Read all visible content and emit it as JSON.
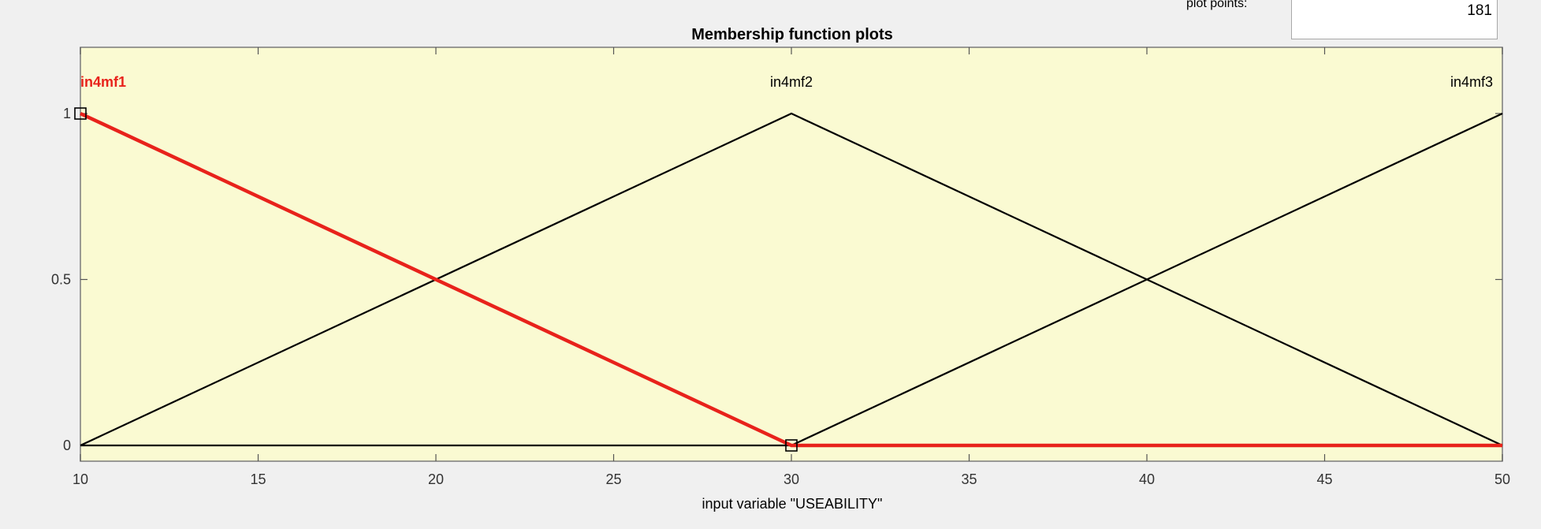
{
  "plot_points": {
    "label": "plot points:",
    "value": "181"
  },
  "chart_data": {
    "type": "line",
    "title": "Membership function plots",
    "xlabel": "input variable \"USEABILITY\"",
    "ylabel": "",
    "xlim": [
      10,
      50
    ],
    "ylim": [
      0,
      1
    ],
    "xticks": [
      10,
      15,
      20,
      25,
      30,
      35,
      40,
      45,
      50
    ],
    "yticks": [
      0,
      0.5,
      1
    ],
    "grid": false,
    "series": [
      {
        "name": "in4mf1",
        "selected": true,
        "color": "#e8221b",
        "x": [
          10,
          30,
          50
        ],
        "y": [
          1,
          0,
          0
        ],
        "label_x": 10
      },
      {
        "name": "in4mf2",
        "selected": false,
        "color": "#000000",
        "x": [
          10,
          30,
          50
        ],
        "y": [
          0,
          1,
          0
        ],
        "label_x": 30
      },
      {
        "name": "in4mf3",
        "selected": false,
        "color": "#000000",
        "x": [
          10,
          30,
          50
        ],
        "y": [
          0,
          0,
          1
        ],
        "label_x": 50
      }
    ],
    "markers": [
      {
        "x": 10,
        "y": 1
      },
      {
        "x": 30,
        "y": 0
      }
    ],
    "plot_background": "#fafad2"
  }
}
